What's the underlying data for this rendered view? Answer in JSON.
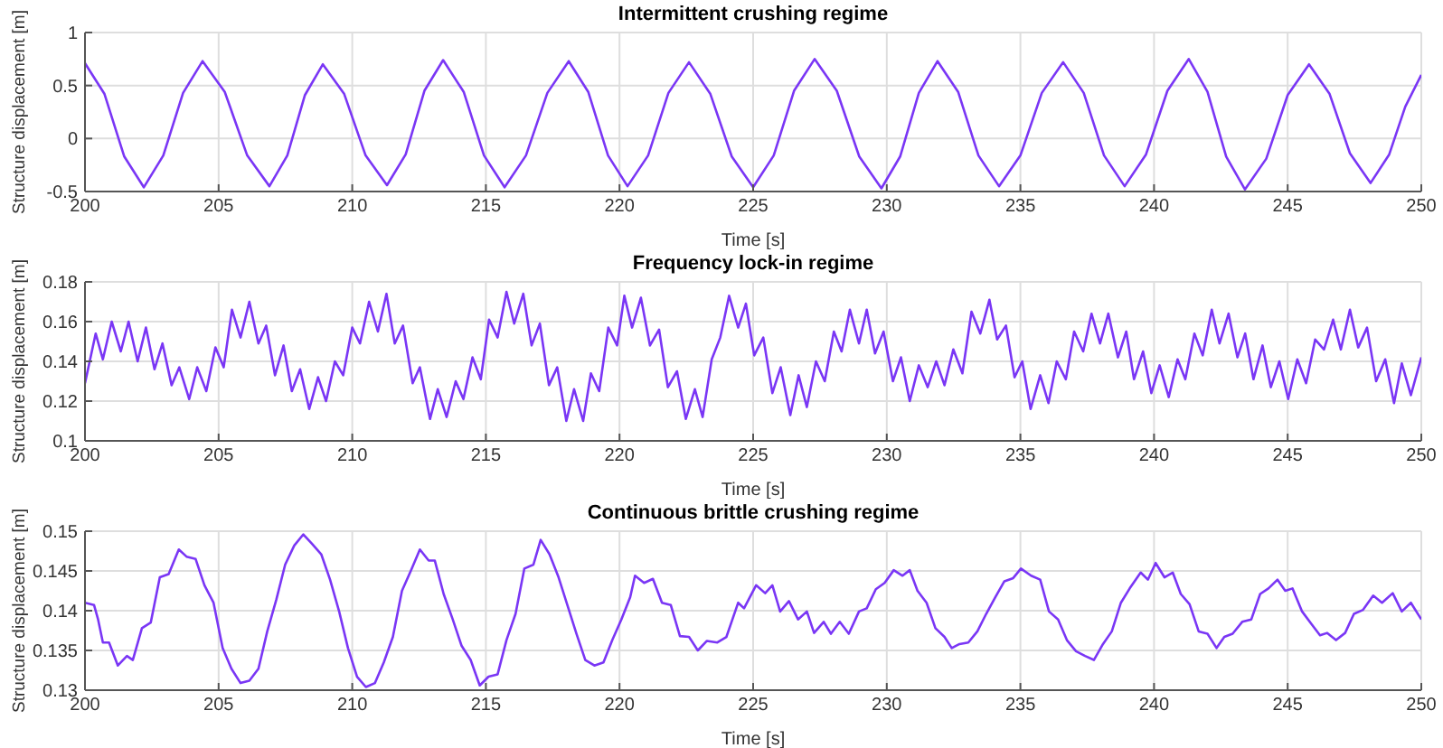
{
  "chart_data": [
    {
      "type": "line",
      "title": "Intermittent crushing regime",
      "xlabel": "Time [s]",
      "ylabel": "Structure displacement [m]",
      "xlim": [
        200,
        250
      ],
      "xticks": [
        200,
        205,
        210,
        215,
        220,
        225,
        230,
        235,
        240,
        245,
        250
      ],
      "ylim": [
        -0.5,
        1
      ],
      "yticks": [
        -0.5,
        0,
        0.5,
        1
      ],
      "grid": true,
      "series": [
        {
          "color": "#7a36f5",
          "x": [
            200,
            200.73,
            201.47,
            202.2,
            202.93,
            203.67,
            204.4,
            205.23,
            206.07,
            206.9,
            207.57,
            208.23,
            208.9,
            209.7,
            210.5,
            211.3,
            212.0,
            212.7,
            213.4,
            214.17,
            214.93,
            215.7,
            216.5,
            217.3,
            218.1,
            218.83,
            219.57,
            220.3,
            221.07,
            221.83,
            222.6,
            223.4,
            224.2,
            225.0,
            225.77,
            226.53,
            227.3,
            228.13,
            228.97,
            229.8,
            230.5,
            231.2,
            231.9,
            232.67,
            233.43,
            234.2,
            235.0,
            235.8,
            236.6,
            237.37,
            238.13,
            238.9,
            239.7,
            240.5,
            241.3,
            242.0,
            242.7,
            243.4,
            244.2,
            245.0,
            245.8,
            246.57,
            247.33,
            248.1,
            248.8,
            249.4,
            250
          ],
          "values": [
            0.71,
            0.42,
            -0.17,
            -0.46,
            -0.16,
            0.43,
            0.73,
            0.44,
            -0.16,
            -0.45,
            -0.16,
            0.41,
            0.7,
            0.42,
            -0.16,
            -0.44,
            -0.15,
            0.45,
            0.74,
            0.44,
            -0.16,
            -0.46,
            -0.16,
            0.43,
            0.73,
            0.44,
            -0.16,
            -0.45,
            -0.16,
            0.43,
            0.72,
            0.42,
            -0.17,
            -0.46,
            -0.16,
            0.45,
            0.75,
            0.45,
            -0.17,
            -0.47,
            -0.17,
            0.43,
            0.73,
            0.44,
            -0.16,
            -0.45,
            -0.16,
            0.43,
            0.72,
            0.43,
            -0.16,
            -0.45,
            -0.15,
            0.45,
            0.75,
            0.44,
            -0.17,
            -0.48,
            -0.19,
            0.41,
            0.7,
            0.42,
            -0.14,
            -0.42,
            -0.15,
            0.3,
            0.6
          ]
        }
      ]
    },
    {
      "type": "line",
      "title": "Frequency lock-in regime",
      "xlabel": "Time [s]",
      "ylabel": "Structure displacement [m]",
      "xlim": [
        200,
        250
      ],
      "xticks": [
        200,
        205,
        210,
        215,
        220,
        225,
        230,
        235,
        240,
        245,
        250
      ],
      "ylim": [
        0.1,
        0.18
      ],
      "yticks": [
        0.1,
        0.12,
        0.14,
        0.16,
        0.18
      ],
      "grid": true,
      "series": [
        {
          "color": "#7a36f5",
          "x": [
            200,
            200.4,
            200.67,
            201.0,
            201.34,
            201.63,
            201.97,
            202.28,
            202.6,
            202.9,
            203.24,
            203.53,
            203.9,
            204.2,
            204.54,
            204.88,
            205.19,
            205.5,
            205.82,
            206.15,
            206.49,
            206.78,
            207.11,
            207.43,
            207.74,
            208.05,
            208.39,
            208.72,
            209.02,
            209.35,
            209.66,
            210.0,
            210.29,
            210.63,
            210.96,
            211.28,
            211.59,
            211.9,
            212.26,
            212.53,
            212.91,
            213.2,
            213.53,
            213.87,
            214.16,
            214.5,
            214.81,
            215.12,
            215.44,
            215.77,
            216.06,
            216.4,
            216.71,
            217.02,
            217.36,
            217.67,
            218.01,
            218.3,
            218.64,
            218.93,
            219.24,
            219.58,
            219.91,
            220.18,
            220.47,
            220.8,
            221.14,
            221.48,
            221.81,
            222.15,
            222.48,
            222.82,
            223.11,
            223.45,
            223.77,
            224.1,
            224.44,
            224.73,
            225.04,
            225.38,
            225.72,
            226.03,
            226.39,
            226.7,
            227.01,
            227.35,
            227.68,
            228.02,
            228.31,
            228.62,
            228.96,
            229.25,
            229.56,
            229.88,
            230.23,
            230.53,
            230.86,
            231.2,
            231.53,
            231.85,
            232.16,
            232.49,
            232.83,
            233.17,
            233.5,
            233.84,
            234.13,
            234.46,
            234.78,
            235.07,
            235.38,
            235.74,
            236.05,
            236.36,
            236.7,
            237.01,
            237.35,
            237.66,
            237.98,
            238.29,
            238.65,
            238.96,
            239.25,
            239.59,
            239.9,
            240.21,
            240.55,
            240.88,
            241.17,
            241.51,
            241.82,
            242.16,
            242.45,
            242.79,
            243.12,
            243.41,
            243.72,
            244.06,
            244.37,
            244.69,
            245.02,
            245.36,
            245.69,
            246.03,
            246.36,
            246.7,
            246.99,
            247.33,
            247.64,
            247.97,
            248.31,
            248.65,
            248.98,
            249.27,
            249.61,
            250
          ],
          "values": [
            0.129,
            0.154,
            0.141,
            0.16,
            0.145,
            0.16,
            0.14,
            0.157,
            0.136,
            0.149,
            0.128,
            0.137,
            0.121,
            0.137,
            0.125,
            0.147,
            0.137,
            0.166,
            0.152,
            0.17,
            0.149,
            0.158,
            0.133,
            0.148,
            0.125,
            0.136,
            0.116,
            0.132,
            0.12,
            0.14,
            0.133,
            0.157,
            0.149,
            0.17,
            0.155,
            0.174,
            0.149,
            0.158,
            0.129,
            0.137,
            0.111,
            0.126,
            0.112,
            0.13,
            0.121,
            0.142,
            0.131,
            0.161,
            0.152,
            0.175,
            0.159,
            0.174,
            0.148,
            0.159,
            0.128,
            0.137,
            0.11,
            0.126,
            0.11,
            0.134,
            0.125,
            0.157,
            0.148,
            0.173,
            0.157,
            0.172,
            0.148,
            0.156,
            0.127,
            0.135,
            0.111,
            0.126,
            0.112,
            0.141,
            0.152,
            0.173,
            0.157,
            0.169,
            0.143,
            0.152,
            0.124,
            0.137,
            0.113,
            0.133,
            0.117,
            0.14,
            0.13,
            0.155,
            0.145,
            0.166,
            0.149,
            0.166,
            0.144,
            0.155,
            0.13,
            0.142,
            0.12,
            0.138,
            0.127,
            0.14,
            0.128,
            0.146,
            0.134,
            0.165,
            0.154,
            0.171,
            0.151,
            0.158,
            0.132,
            0.14,
            0.116,
            0.133,
            0.119,
            0.14,
            0.131,
            0.155,
            0.145,
            0.164,
            0.149,
            0.164,
            0.142,
            0.155,
            0.131,
            0.145,
            0.124,
            0.138,
            0.122,
            0.141,
            0.131,
            0.154,
            0.143,
            0.166,
            0.149,
            0.164,
            0.142,
            0.154,
            0.131,
            0.148,
            0.127,
            0.14,
            0.121,
            0.141,
            0.129,
            0.151,
            0.146,
            0.161,
            0.146,
            0.166,
            0.147,
            0.157,
            0.13,
            0.141,
            0.119,
            0.139,
            0.123,
            0.142
          ]
        }
      ]
    },
    {
      "type": "line",
      "title": "Continuous brittle crushing regime",
      "xlabel": "Time [s]",
      "ylabel": "Structure displacement [m]",
      "xlim": [
        200,
        250
      ],
      "xticks": [
        200,
        205,
        210,
        215,
        220,
        225,
        230,
        235,
        240,
        245,
        250
      ],
      "ylim": [
        0.13,
        0.15
      ],
      "yticks": [
        0.13,
        0.135,
        0.14,
        0.145,
        0.15
      ],
      "grid": true,
      "series": [
        {
          "color": "#7a36f5",
          "x": [
            200,
            200.34,
            200.49,
            200.67,
            200.9,
            201.23,
            201.57,
            201.79,
            202.13,
            202.46,
            202.8,
            203.13,
            203.51,
            203.8,
            204.14,
            204.47,
            204.81,
            205.15,
            205.48,
            205.82,
            206.15,
            206.49,
            206.82,
            207.16,
            207.49,
            207.83,
            208.17,
            208.5,
            208.84,
            209.17,
            209.51,
            209.84,
            210.18,
            210.51,
            210.85,
            211.18,
            211.52,
            211.86,
            212.19,
            212.53,
            212.86,
            213.09,
            213.42,
            213.76,
            214.09,
            214.43,
            214.77,
            215.1,
            215.44,
            215.77,
            216.11,
            216.44,
            216.78,
            217.05,
            217.38,
            217.72,
            218.05,
            218.39,
            218.72,
            219.06,
            219.4,
            219.73,
            220.07,
            220.4,
            220.58,
            220.92,
            221.25,
            221.59,
            221.92,
            222.26,
            222.6,
            222.93,
            223.27,
            223.66,
            224.0,
            224.44,
            224.66,
            225.11,
            225.45,
            225.72,
            226.01,
            226.34,
            226.68,
            227.01,
            227.28,
            227.64,
            227.91,
            228.24,
            228.58,
            228.96,
            229.25,
            229.59,
            229.92,
            230.26,
            230.59,
            230.86,
            231.15,
            231.49,
            231.82,
            232.16,
            232.43,
            232.72,
            233.05,
            233.39,
            233.72,
            234.06,
            234.4,
            234.73,
            235.02,
            235.4,
            235.74,
            236.07,
            236.41,
            236.74,
            237.08,
            237.42,
            237.75,
            238.09,
            238.42,
            238.76,
            239.09,
            239.5,
            239.77,
            240.06,
            240.39,
            240.7,
            241.0,
            241.33,
            241.67,
            242.0,
            242.34,
            242.63,
            242.94,
            243.3,
            243.64,
            243.97,
            244.28,
            244.62,
            244.91,
            245.18,
            245.54,
            245.87,
            246.21,
            246.48,
            246.81,
            247.15,
            247.48,
            247.82,
            248.2,
            248.53,
            248.93,
            249.27,
            249.61,
            250
          ],
          "values": [
            0.141,
            0.1407,
            0.1389,
            0.136,
            0.136,
            0.1331,
            0.1343,
            0.1338,
            0.1378,
            0.1385,
            0.1442,
            0.1446,
            0.1477,
            0.1468,
            0.1465,
            0.1432,
            0.141,
            0.1353,
            0.1327,
            0.1309,
            0.1312,
            0.1327,
            0.1374,
            0.1414,
            0.1458,
            0.1482,
            0.1496,
            0.1484,
            0.1471,
            0.1439,
            0.1399,
            0.1353,
            0.1317,
            0.1304,
            0.1309,
            0.1335,
            0.1367,
            0.1425,
            0.145,
            0.1477,
            0.1463,
            0.1463,
            0.1421,
            0.1389,
            0.1356,
            0.1338,
            0.1306,
            0.1317,
            0.132,
            0.1363,
            0.1396,
            0.1453,
            0.1458,
            0.1489,
            0.1471,
            0.1442,
            0.1407,
            0.1371,
            0.1338,
            0.1331,
            0.1335,
            0.1363,
            0.1389,
            0.1417,
            0.1444,
            0.1435,
            0.144,
            0.141,
            0.1407,
            0.1368,
            0.1367,
            0.135,
            0.1362,
            0.136,
            0.1367,
            0.141,
            0.1403,
            0.1432,
            0.1422,
            0.1432,
            0.1399,
            0.1412,
            0.1389,
            0.1399,
            0.1372,
            0.1386,
            0.1371,
            0.1386,
            0.1371,
            0.1399,
            0.1403,
            0.1427,
            0.1435,
            0.1451,
            0.1444,
            0.1451,
            0.1425,
            0.141,
            0.1378,
            0.1367,
            0.1353,
            0.1358,
            0.136,
            0.1374,
            0.1396,
            0.1417,
            0.1437,
            0.1441,
            0.1453,
            0.1444,
            0.1439,
            0.1399,
            0.1389,
            0.1363,
            0.1349,
            0.1343,
            0.1338,
            0.1358,
            0.1374,
            0.141,
            0.1428,
            0.1448,
            0.1439,
            0.146,
            0.1442,
            0.1448,
            0.1421,
            0.1408,
            0.1374,
            0.1371,
            0.1353,
            0.1367,
            0.1371,
            0.1386,
            0.1389,
            0.1421,
            0.1428,
            0.1439,
            0.1425,
            0.1428,
            0.1399,
            0.1384,
            0.1369,
            0.1372,
            0.1363,
            0.1372,
            0.1396,
            0.1401,
            0.1419,
            0.141,
            0.1422,
            0.1399,
            0.141,
            0.1389
          ]
        }
      ]
    }
  ]
}
